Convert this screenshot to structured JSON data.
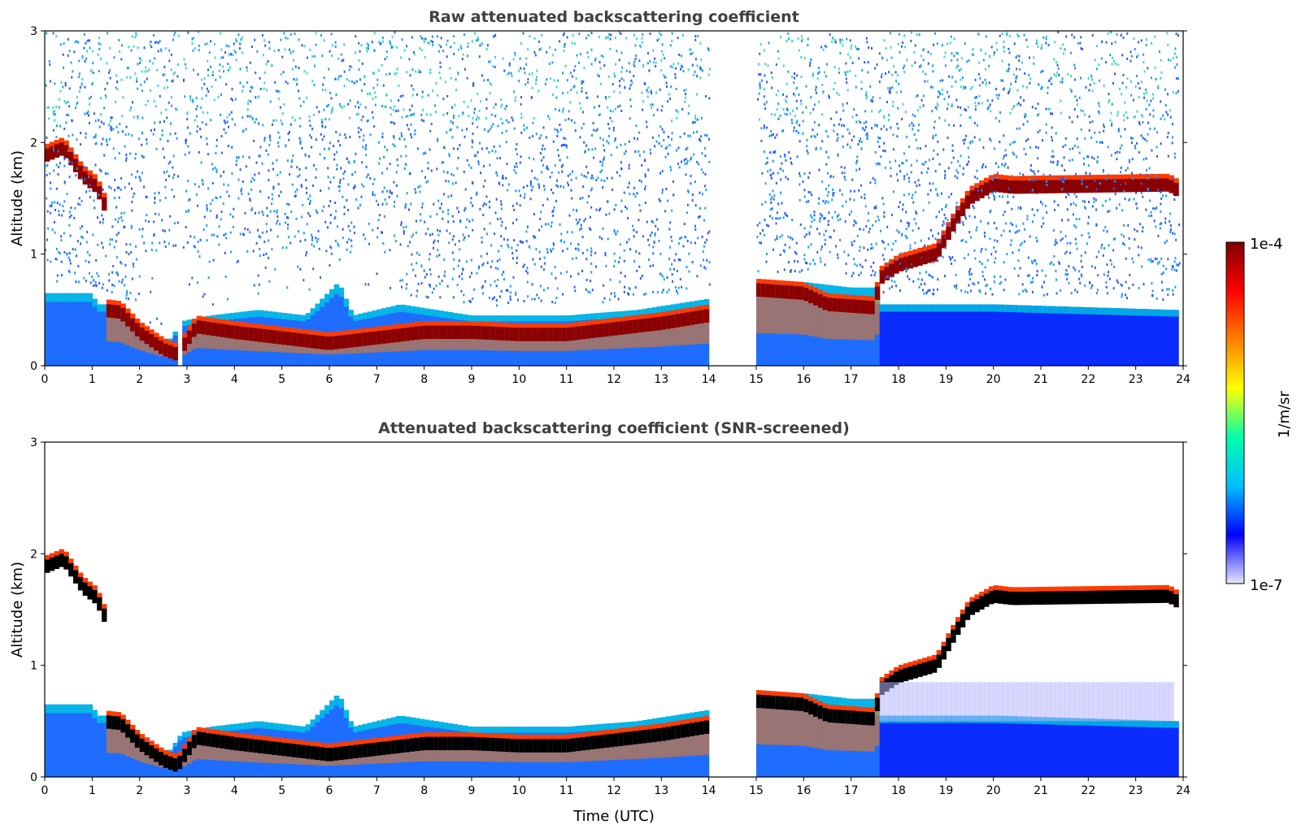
{
  "chart_data": [
    {
      "type": "heatmap",
      "title": "Raw attenuated backscattering coefficient",
      "xlabel": "",
      "ylabel": "Altitude (km)",
      "xlim": [
        0,
        24
      ],
      "ylim": [
        0,
        3
      ],
      "xticks": [
        0,
        1,
        2,
        3,
        4,
        5,
        6,
        7,
        8,
        9,
        10,
        11,
        12,
        13,
        14,
        15,
        16,
        17,
        18,
        19,
        20,
        21,
        22,
        23,
        24
      ],
      "yticks": [
        0,
        1,
        2,
        3
      ],
      "data_gaps_hours": [
        [
          2.8,
          2.95
        ],
        [
          14.05,
          15.0
        ]
      ],
      "boundary_layer_top_km": [
        {
          "t": 0.0,
          "z": 0.65
        },
        {
          "t": 1.0,
          "z": 0.65
        },
        {
          "t": 1.1,
          "z": 0.55
        },
        {
          "t": 1.6,
          "z": 0.55
        },
        {
          "t": 2.0,
          "z": 0.35
        },
        {
          "t": 2.5,
          "z": 0.15
        },
        {
          "t": 2.9,
          "z": 0.4
        },
        {
          "t": 3.5,
          "z": 0.45
        },
        {
          "t": 4.5,
          "z": 0.5
        },
        {
          "t": 5.5,
          "z": 0.45
        },
        {
          "t": 6.2,
          "z": 0.75
        },
        {
          "t": 6.5,
          "z": 0.45
        },
        {
          "t": 7.5,
          "z": 0.55
        },
        {
          "t": 9.0,
          "z": 0.45
        },
        {
          "t": 11.0,
          "z": 0.45
        },
        {
          "t": 12.5,
          "z": 0.5
        },
        {
          "t": 14.0,
          "z": 0.6
        },
        {
          "t": 15.0,
          "z": 0.75
        },
        {
          "t": 16.0,
          "z": 0.75
        },
        {
          "t": 17.0,
          "z": 0.7
        },
        {
          "t": 17.5,
          "z": 0.7
        },
        {
          "t": 17.6,
          "z": 0.55
        },
        {
          "t": 20.0,
          "z": 0.55
        },
        {
          "t": 23.8,
          "z": 0.5
        }
      ],
      "cloud_layer_km": [
        {
          "t": 0.0,
          "z": 1.88
        },
        {
          "t": 0.4,
          "z": 1.95
        },
        {
          "t": 0.8,
          "z": 1.7
        },
        {
          "t": 1.1,
          "z": 1.6
        },
        {
          "t": 1.3,
          "z": 1.4
        },
        {
          "t": 1.2,
          "z": 0.5
        },
        {
          "t": 1.6,
          "z": 0.48
        },
        {
          "t": 2.0,
          "z": 0.3
        },
        {
          "t": 2.5,
          "z": 0.15
        },
        {
          "t": 2.8,
          "z": 0.1
        },
        {
          "t": 3.2,
          "z": 0.35
        },
        {
          "t": 4.0,
          "z": 0.3
        },
        {
          "t": 5.0,
          "z": 0.25
        },
        {
          "t": 6.0,
          "z": 0.2
        },
        {
          "t": 7.0,
          "z": 0.25
        },
        {
          "t": 8.0,
          "z": 0.3
        },
        {
          "t": 9.0,
          "z": 0.3
        },
        {
          "t": 10.0,
          "z": 0.28
        },
        {
          "t": 11.0,
          "z": 0.28
        },
        {
          "t": 12.0,
          "z": 0.33
        },
        {
          "t": 13.0,
          "z": 0.38
        },
        {
          "t": 14.0,
          "z": 0.45
        },
        {
          "t": 15.0,
          "z": 0.68
        },
        {
          "t": 16.0,
          "z": 0.65
        },
        {
          "t": 16.5,
          "z": 0.55
        },
        {
          "t": 17.5,
          "z": 0.52
        },
        {
          "t": 17.6,
          "z": 0.78
        },
        {
          "t": 18.0,
          "z": 0.9
        },
        {
          "t": 18.8,
          "z": 1.0
        },
        {
          "t": 19.2,
          "z": 1.3
        },
        {
          "t": 19.5,
          "z": 1.5
        },
        {
          "t": 20.0,
          "z": 1.62
        },
        {
          "t": 20.4,
          "z": 1.6
        },
        {
          "t": 23.7,
          "z": 1.62
        },
        {
          "t": 23.85,
          "z": 1.58
        }
      ]
    },
    {
      "type": "heatmap",
      "title": "Attenuated backscattering coefficient (SNR-screened)",
      "xlabel": "Time (UTC)",
      "ylabel": "Altitude (km)",
      "xlim": [
        0,
        24
      ],
      "ylim": [
        0,
        3
      ],
      "xticks": [
        0,
        1,
        2,
        3,
        4,
        5,
        6,
        7,
        8,
        9,
        10,
        11,
        12,
        13,
        14,
        15,
        16,
        17,
        18,
        19,
        20,
        21,
        22,
        23,
        24
      ],
      "yticks": [
        0,
        1,
        2,
        3
      ],
      "data_gaps_hours": [
        [
          14.05,
          15.0
        ]
      ]
    }
  ],
  "colorbar": {
    "label": "1/m/sr",
    "min_label": "1e-7",
    "max_label": "1e-4",
    "scale": "log",
    "colormap": "jet",
    "colormap_stops": [
      "#e6e6fa",
      "#0000ff",
      "#00bfff",
      "#00ffaa",
      "#ffff00",
      "#ff8000",
      "#ff0000",
      "#800000"
    ]
  }
}
